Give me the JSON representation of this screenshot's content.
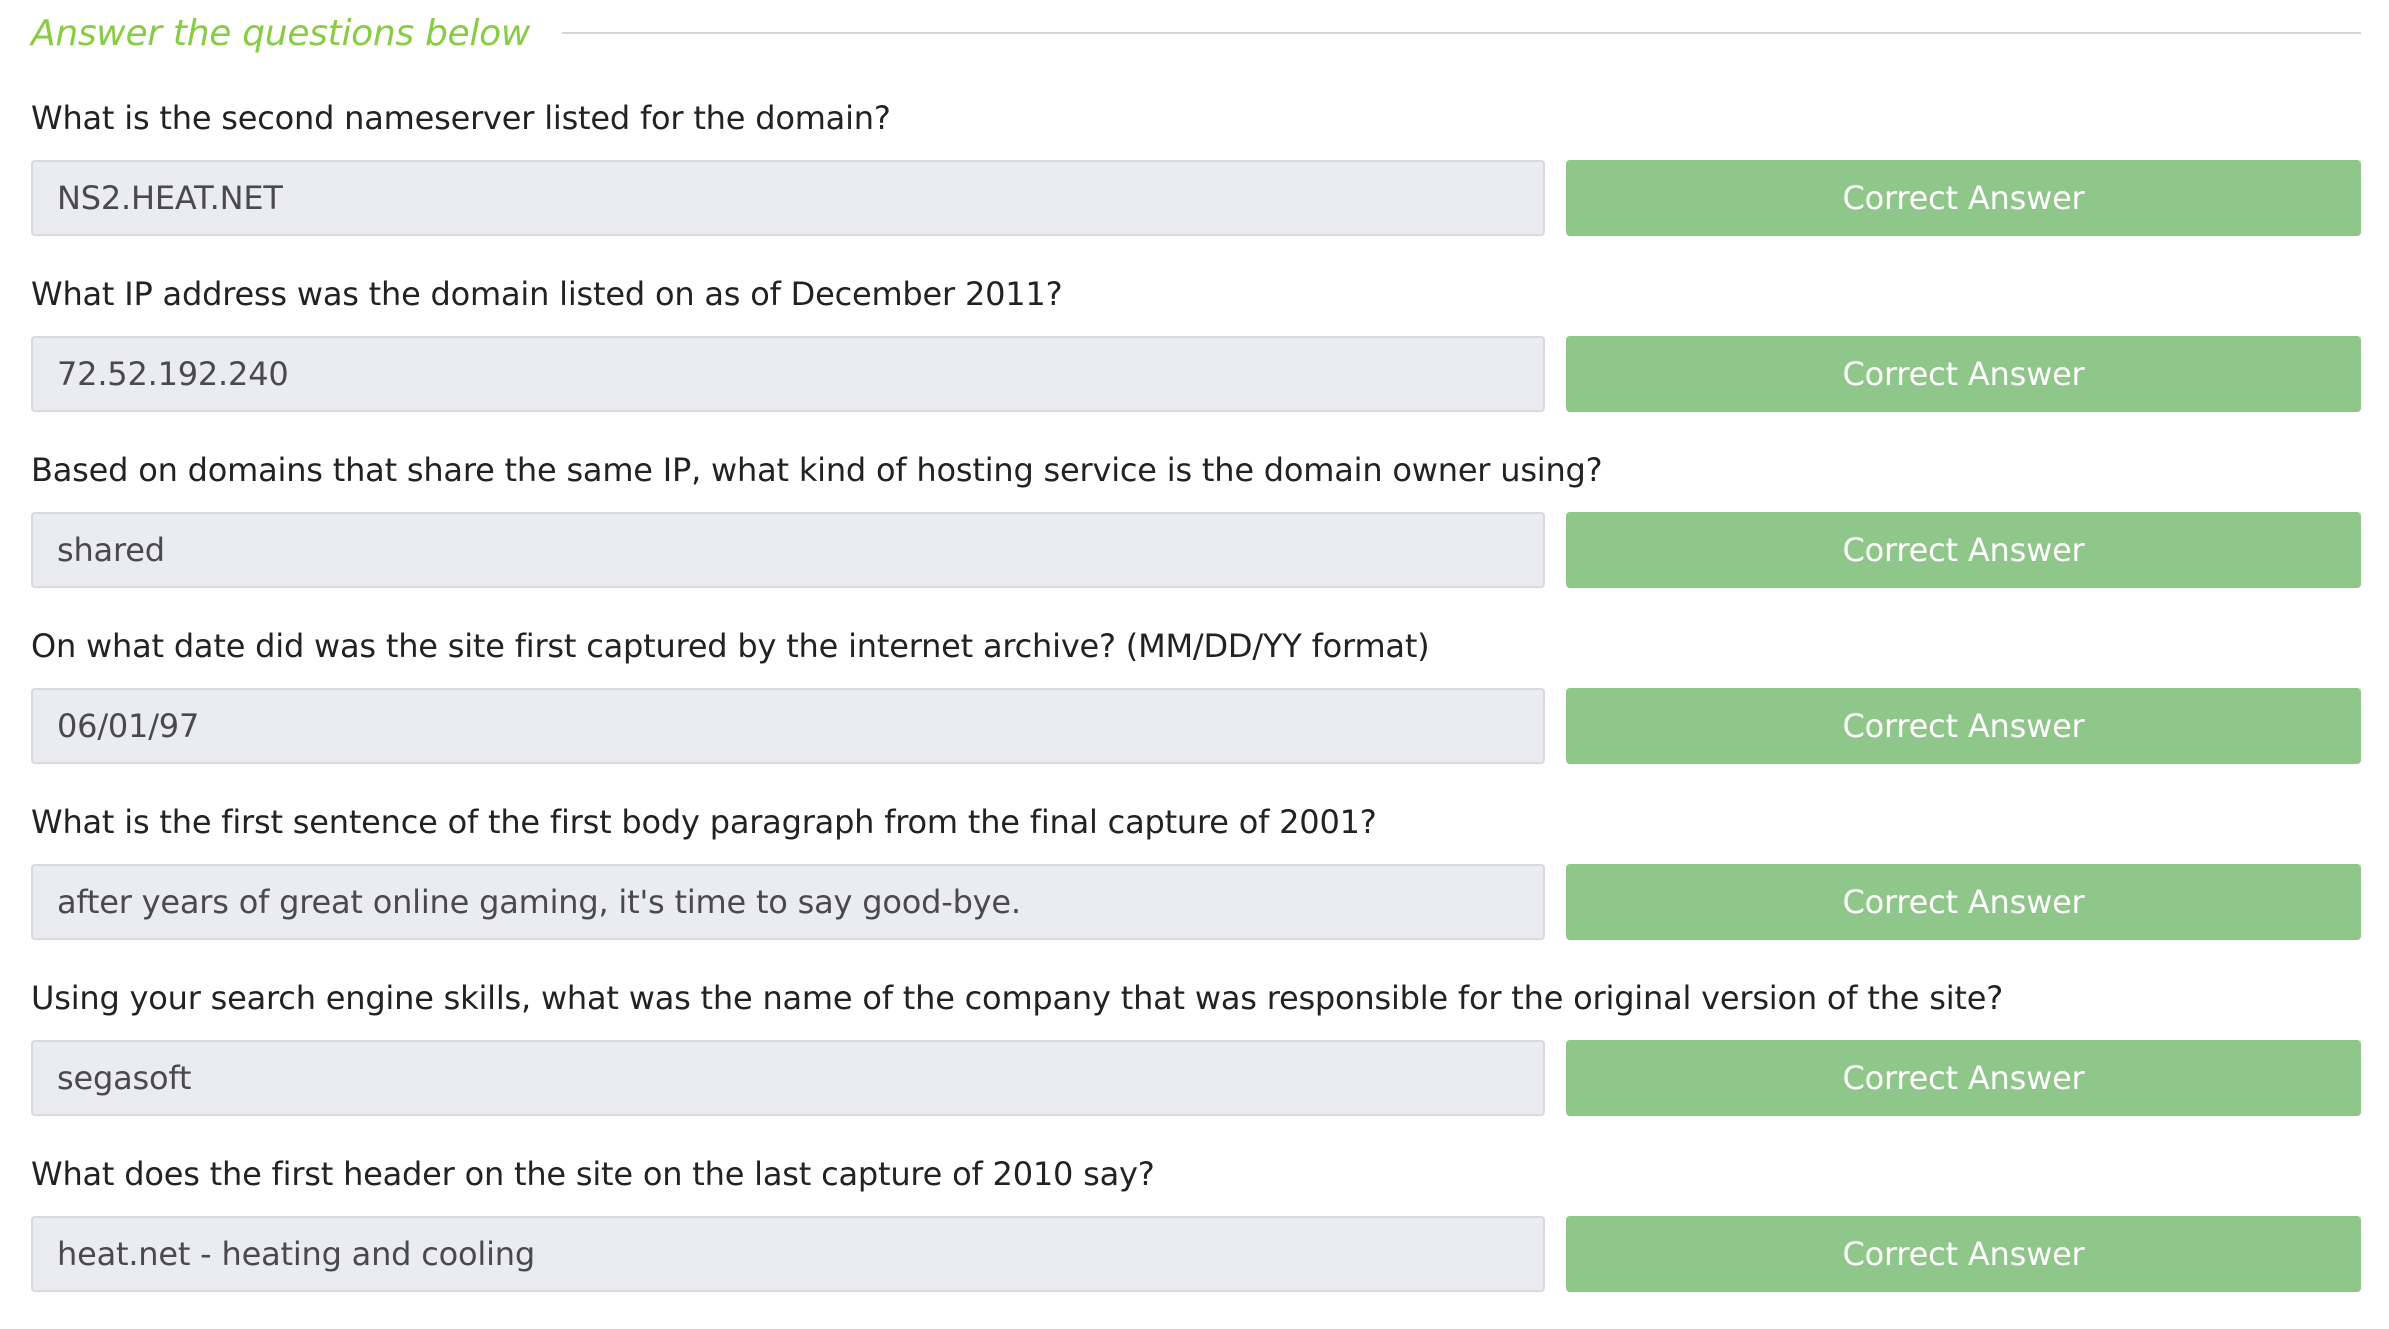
{
  "section": {
    "title": "Answer the questions below"
  },
  "questions": [
    {
      "question": "What is the second nameserver listed for the domain?",
      "answer": "NS2.HEAT.NET",
      "button_label": "Correct Answer"
    },
    {
      "question": "What IP address was the domain listed on as of December 2011?",
      "answer": "72.52.192.240",
      "button_label": "Correct Answer"
    },
    {
      "question": "Based on domains that share the same IP, what kind of hosting service is the domain owner using?",
      "answer": "shared",
      "button_label": "Correct Answer"
    },
    {
      "question": "On what date did was the site first captured by the internet archive? (MM/DD/YY format)",
      "answer": "06/01/97",
      "button_label": "Correct Answer"
    },
    {
      "question": "What is the first sentence of the first body paragraph from the final capture of 2001?",
      "answer": "after years of great online gaming, it's time to say good-bye.",
      "button_label": "Correct Answer"
    },
    {
      "question": "Using your search engine skills, what was the name of the company that was responsible for the original version of the site?",
      "answer": "segasoft",
      "button_label": "Correct Answer"
    },
    {
      "question": "What does the first header on the site on the last capture of 2010 say?",
      "answer": "heat.net - heating and cooling",
      "button_label": "Correct Answer"
    }
  ],
  "colors": {
    "title": "#88cc44",
    "button": "#8fc68a",
    "input_background": "#ebecef"
  }
}
